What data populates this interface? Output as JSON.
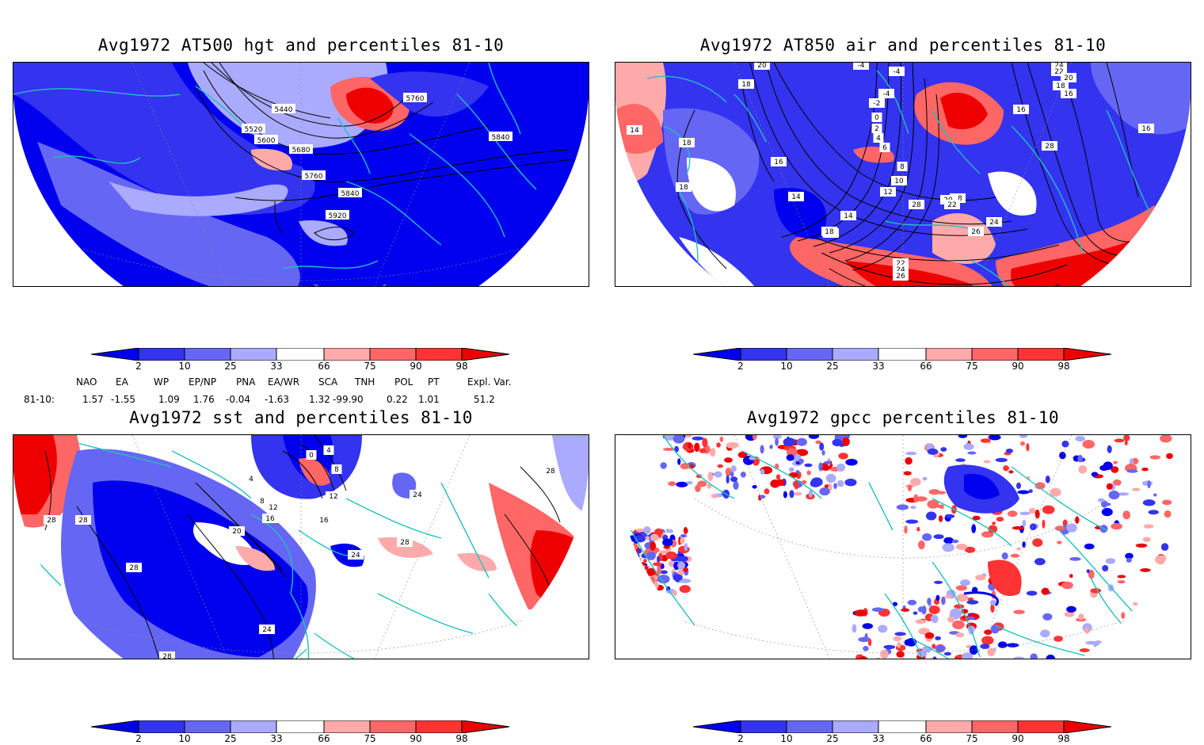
{
  "panels": {
    "p1": {
      "title": "Avg1972 AT500 hgt and percentiles 81-10",
      "contour_labels": [
        "5440",
        "5520",
        "5600",
        "5680",
        "5760",
        "5840",
        "5920",
        "5760",
        "5840"
      ]
    },
    "p2": {
      "title": "Avg1972 AT850 air and percentiles 81-10",
      "contour_labels": [
        "20",
        "18",
        "-4",
        "-4",
        "-4",
        "-2",
        "0",
        "2",
        "4",
        "6",
        "8",
        "10",
        "12",
        "14",
        "14",
        "16",
        "16",
        "16",
        "16",
        "18",
        "18",
        "20",
        "22",
        "24",
        "26",
        "28",
        "24",
        "22",
        "20",
        "18",
        "16",
        "22",
        "24",
        "26",
        "28",
        "16",
        "16",
        "14",
        "18",
        "18"
      ]
    },
    "p3": {
      "title": "Avg1972 sst and percentiles 81-10",
      "contour_labels": [
        "28",
        "28",
        "28",
        "28",
        "24",
        "20",
        "16",
        "12",
        "8",
        "4",
        "0",
        "4",
        "8",
        "12",
        "16",
        "24",
        "28",
        "24",
        "28",
        "28"
      ]
    },
    "p4": {
      "title": "Avg1972 gpcc percentiles 81-10"
    }
  },
  "colorbar": {
    "labels": [
      "2",
      "10",
      "25",
      "33",
      "66",
      "75",
      "90",
      "98"
    ],
    "colors": [
      "#0000ee",
      "#3333f0",
      "#6666f4",
      "#aaaaff",
      "#ffaaaa",
      "#ff6666",
      "#ff3333",
      "#ee0000"
    ]
  },
  "indices": {
    "headers": [
      "NAO",
      "EA",
      "WP",
      "EP/NP",
      "PNA",
      "EA/WR",
      "SCA",
      "TNH",
      "POL",
      "PT",
      "Expl. Var."
    ],
    "row_label": "81-10:",
    "values": [
      "1.57",
      "-1.55",
      "1.09",
      "1.76",
      "-0.04",
      "-1.63",
      "1.32",
      "-99.90",
      "0.22",
      "1.01",
      "51.2"
    ]
  },
  "colors": {
    "coastline": "#20c0c0",
    "contour": "#000000",
    "grid": "#888888"
  }
}
